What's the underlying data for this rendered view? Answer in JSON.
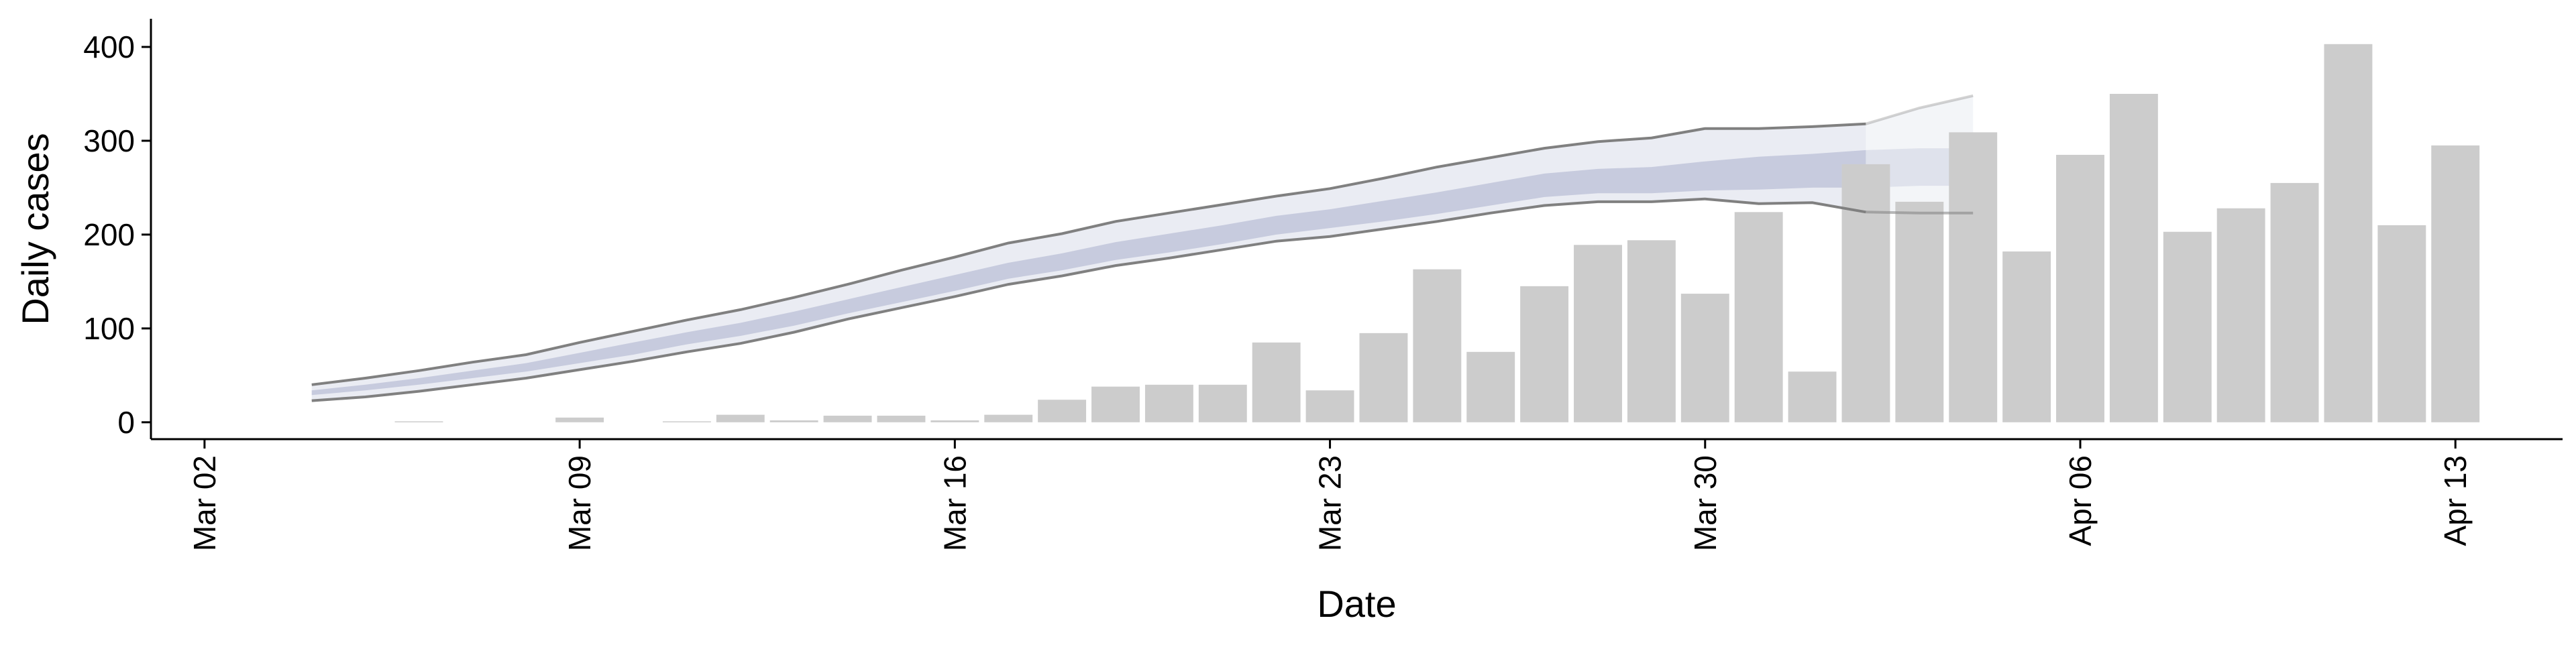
{
  "chart_data": {
    "type": "bar",
    "xlabel": "Date",
    "ylabel": "Daily cases",
    "ylim": [
      0,
      400
    ],
    "yticks": [
      0,
      100,
      200,
      300,
      400
    ],
    "x_axis": {
      "type": "date",
      "range": [
        "2020-03-01",
        "2020-04-15"
      ],
      "ticks": [
        "2020-03-02",
        "2020-03-09",
        "2020-03-16",
        "2020-03-23",
        "2020-03-30",
        "2020-04-06",
        "2020-04-13"
      ],
      "tick_labels": [
        "Mar 02",
        "Mar 09",
        "Mar 16",
        "Mar 23",
        "Mar 30",
        "Apr 06",
        "Apr 13"
      ],
      "tick_label_rotation": "vertical"
    },
    "grid": false,
    "bar_color": "#cccccc",
    "bars": [
      {
        "date": "2020-03-06",
        "value": 1
      },
      {
        "date": "2020-03-09",
        "value": 5
      },
      {
        "date": "2020-03-11",
        "value": 1
      },
      {
        "date": "2020-03-12",
        "value": 8
      },
      {
        "date": "2020-03-13",
        "value": 2
      },
      {
        "date": "2020-03-14",
        "value": 7
      },
      {
        "date": "2020-03-15",
        "value": 7
      },
      {
        "date": "2020-03-16",
        "value": 2
      },
      {
        "date": "2020-03-17",
        "value": 8
      },
      {
        "date": "2020-03-18",
        "value": 24
      },
      {
        "date": "2020-03-19",
        "value": 38
      },
      {
        "date": "2020-03-20",
        "value": 40
      },
      {
        "date": "2020-03-21",
        "value": 40
      },
      {
        "date": "2020-03-22",
        "value": 85
      },
      {
        "date": "2020-03-23",
        "value": 34
      },
      {
        "date": "2020-03-24",
        "value": 95
      },
      {
        "date": "2020-03-25",
        "value": 163
      },
      {
        "date": "2020-03-26",
        "value": 75
      },
      {
        "date": "2020-03-27",
        "value": 145
      },
      {
        "date": "2020-03-28",
        "value": 189
      },
      {
        "date": "2020-03-29",
        "value": 194
      },
      {
        "date": "2020-03-30",
        "value": 137
      },
      {
        "date": "2020-03-31",
        "value": 224
      },
      {
        "date": "2020-04-01",
        "value": 54
      },
      {
        "date": "2020-04-02",
        "value": 275
      },
      {
        "date": "2020-04-03",
        "value": 235
      },
      {
        "date": "2020-04-04",
        "value": 309
      },
      {
        "date": "2020-04-05",
        "value": 182
      },
      {
        "date": "2020-04-06",
        "value": 285
      },
      {
        "date": "2020-04-07",
        "value": 350
      },
      {
        "date": "2020-04-08",
        "value": 203
      },
      {
        "date": "2020-04-09",
        "value": 228
      },
      {
        "date": "2020-04-10",
        "value": 255
      },
      {
        "date": "2020-04-11",
        "value": 403
      },
      {
        "date": "2020-04-12",
        "value": 210
      },
      {
        "date": "2020-04-13",
        "value": 295
      }
    ],
    "estimate": {
      "line_color": "#808080",
      "band_color_outer": "#eaecf3",
      "band_color_inner": "#c7cbde",
      "dates": [
        "2020-03-04",
        "2020-03-05",
        "2020-03-06",
        "2020-03-07",
        "2020-03-08",
        "2020-03-09",
        "2020-03-10",
        "2020-03-11",
        "2020-03-12",
        "2020-03-13",
        "2020-03-14",
        "2020-03-15",
        "2020-03-16",
        "2020-03-17",
        "2020-03-18",
        "2020-03-19",
        "2020-03-20",
        "2020-03-21",
        "2020-03-22",
        "2020-03-23",
        "2020-03-24",
        "2020-03-25",
        "2020-03-26",
        "2020-03-27",
        "2020-03-28",
        "2020-03-29",
        "2020-03-30",
        "2020-03-31",
        "2020-04-01",
        "2020-04-02",
        "2020-04-03",
        "2020-04-04"
      ],
      "upper": [
        40,
        47,
        55,
        64,
        72,
        85,
        97,
        109,
        120,
        133,
        147,
        162,
        176,
        191,
        201,
        214,
        223,
        232,
        241,
        249,
        260,
        272,
        282,
        292,
        299,
        303,
        313,
        313,
        315,
        318,
        335,
        348
      ],
      "lower": [
        23,
        27,
        33,
        40,
        47,
        56,
        65,
        75,
        84,
        96,
        110,
        122,
        134,
        147,
        156,
        167,
        175,
        184,
        193,
        198,
        206,
        214,
        223,
        231,
        235,
        235,
        238,
        233,
        234,
        224,
        223,
        223
      ],
      "inner_upper": [
        34,
        40,
        47,
        55,
        63,
        74,
        85,
        96,
        106,
        118,
        131,
        144,
        157,
        170,
        180,
        192,
        201,
        210,
        220,
        227,
        236,
        245,
        255,
        265,
        270,
        272,
        278,
        283,
        286,
        290,
        292,
        292
      ],
      "inner_lower": [
        29,
        34,
        40,
        47,
        54,
        63,
        72,
        83,
        92,
        103,
        116,
        128,
        140,
        153,
        162,
        173,
        181,
        190,
        200,
        207,
        214,
        222,
        231,
        240,
        244,
        244,
        247,
        248,
        250,
        250,
        252,
        252
      ],
      "projected_from": "2020-04-02"
    }
  }
}
